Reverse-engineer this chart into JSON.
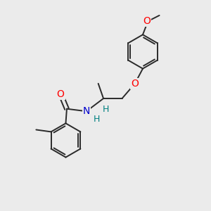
{
  "bg_color": "#ebebeb",
  "bond_color": "#2a2a2a",
  "bond_width": 1.4,
  "O_color": "#ff0000",
  "N_color": "#0000cc",
  "H_color": "#008080",
  "font_size_atom": 9.5,
  "fig_size": [
    3.0,
    3.0
  ],
  "dpi": 100,
  "xlim": [
    0,
    10
  ],
  "ylim": [
    0,
    10
  ]
}
